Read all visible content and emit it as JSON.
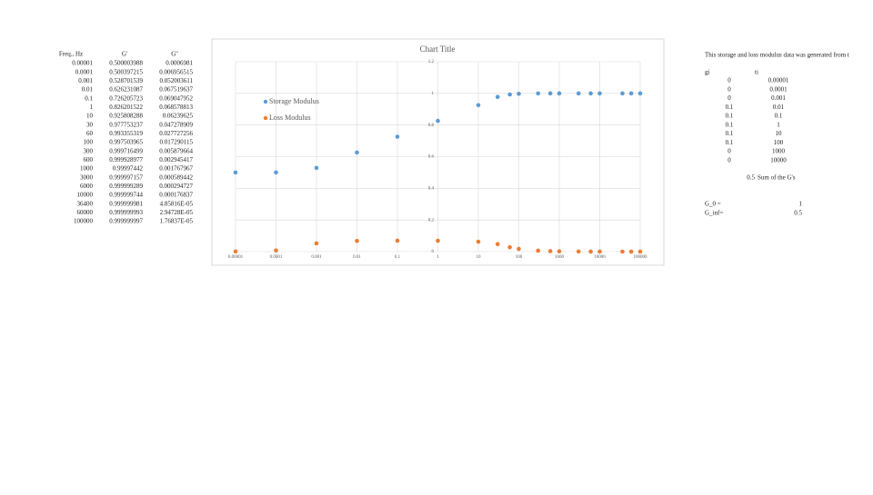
{
  "sheet": {
    "left_table": {
      "header": [
        "Freq., Hz",
        "G'",
        "G''"
      ],
      "rows": [
        [
          "0.00001",
          "0.500003988",
          "0.0006981"
        ],
        [
          "0.0001",
          "0.500397215",
          "0.006956515"
        ],
        [
          "0.001",
          "0.528701539",
          "0.052003611"
        ],
        [
          "0.01",
          "0.626231087",
          "0.067519637"
        ],
        [
          "0.1",
          "0.726205723",
          "0.069047952"
        ],
        [
          "1",
          "0.826201522",
          "0.068578813"
        ],
        [
          "10",
          "0.925808288",
          "0.06239625"
        ],
        [
          "30",
          "0.977753237",
          "0.047278909"
        ],
        [
          "60",
          "0.993355319",
          "0.027727256"
        ],
        [
          "100",
          "0.997503965",
          "0.017290115"
        ],
        [
          "300",
          "0.999716499",
          "0.005879664"
        ],
        [
          "600",
          "0.999928977",
          "0.002945417"
        ],
        [
          "1000",
          "0.99997442",
          "0.001767967"
        ],
        [
          "3000",
          "0.999997157",
          "0.000589442"
        ],
        [
          "6000",
          "0.999999289",
          "0.000294727"
        ],
        [
          "10000",
          "0.999999744",
          "0.000176837"
        ],
        [
          "36400",
          "0.999999981",
          "4.85816E-05"
        ],
        [
          "60000",
          "0.999999993",
          "2.94728E-05"
        ],
        [
          "100000",
          "0.999999997",
          "1.76837E-05"
        ]
      ]
    },
    "note": "This storage and loss modulus data was generated from t",
    "right_table": {
      "header": [
        "gi",
        "ti"
      ],
      "rows": [
        [
          "0",
          "0.00001"
        ],
        [
          "0",
          "0.0001"
        ],
        [
          "0",
          "0.001"
        ],
        [
          "0.1",
          "0.01"
        ],
        [
          "0.1",
          "0.1"
        ],
        [
          "0.1",
          "1"
        ],
        [
          "0.1",
          "10"
        ],
        [
          "0.1",
          "100"
        ],
        [
          "0",
          "1000"
        ],
        [
          "0",
          "10000"
        ]
      ]
    },
    "sum": {
      "value": "0.5",
      "label": "Sum of the G's"
    },
    "params": [
      {
        "label": "G_0 =",
        "value": "1"
      },
      {
        "label": "G_inf=",
        "value": "0.5"
      }
    ]
  },
  "chart_data": {
    "type": "scatter",
    "title": "Chart Title",
    "x": [
      1e-05,
      0.0001,
      0.001,
      0.01,
      0.1,
      1,
      10,
      30,
      60,
      100,
      300,
      600,
      1000,
      3000,
      6000,
      10000,
      36400,
      60000,
      100000
    ],
    "series": [
      {
        "name": "Storage Modulus",
        "color": "#5b9bd5",
        "values": [
          0.500003988,
          0.500397215,
          0.528701539,
          0.626231087,
          0.726205723,
          0.826201522,
          0.925808288,
          0.977753237,
          0.993355319,
          0.997503965,
          0.999716499,
          0.999928977,
          0.99997442,
          0.999997157,
          0.999999289,
          0.999999744,
          0.999999981,
          0.999999993,
          0.999999997
        ]
      },
      {
        "name": "Loss Modulus",
        "color": "#ed7d31",
        "values": [
          0.0006981,
          0.006956515,
          0.052003611,
          0.067519637,
          0.069047952,
          0.068578813,
          0.06239625,
          0.047278909,
          0.027727256,
          0.017290115,
          0.005879664,
          0.002945417,
          0.001767967,
          0.000589442,
          0.000294727,
          0.000176837,
          4.85816e-05,
          2.94728e-05,
          1.76837e-05
        ]
      }
    ],
    "xlim": [
      1e-05,
      100000
    ],
    "xlog": true,
    "xticks": [
      1e-05,
      0.0001,
      0.001,
      0.01,
      0.1,
      1,
      10,
      100,
      1000,
      10000,
      100000
    ],
    "ylim": [
      0,
      1.2
    ],
    "yticks": [
      0,
      0.2,
      0.4,
      0.6,
      0.8,
      1,
      1.2
    ],
    "grid": true,
    "legend": "upper left"
  }
}
